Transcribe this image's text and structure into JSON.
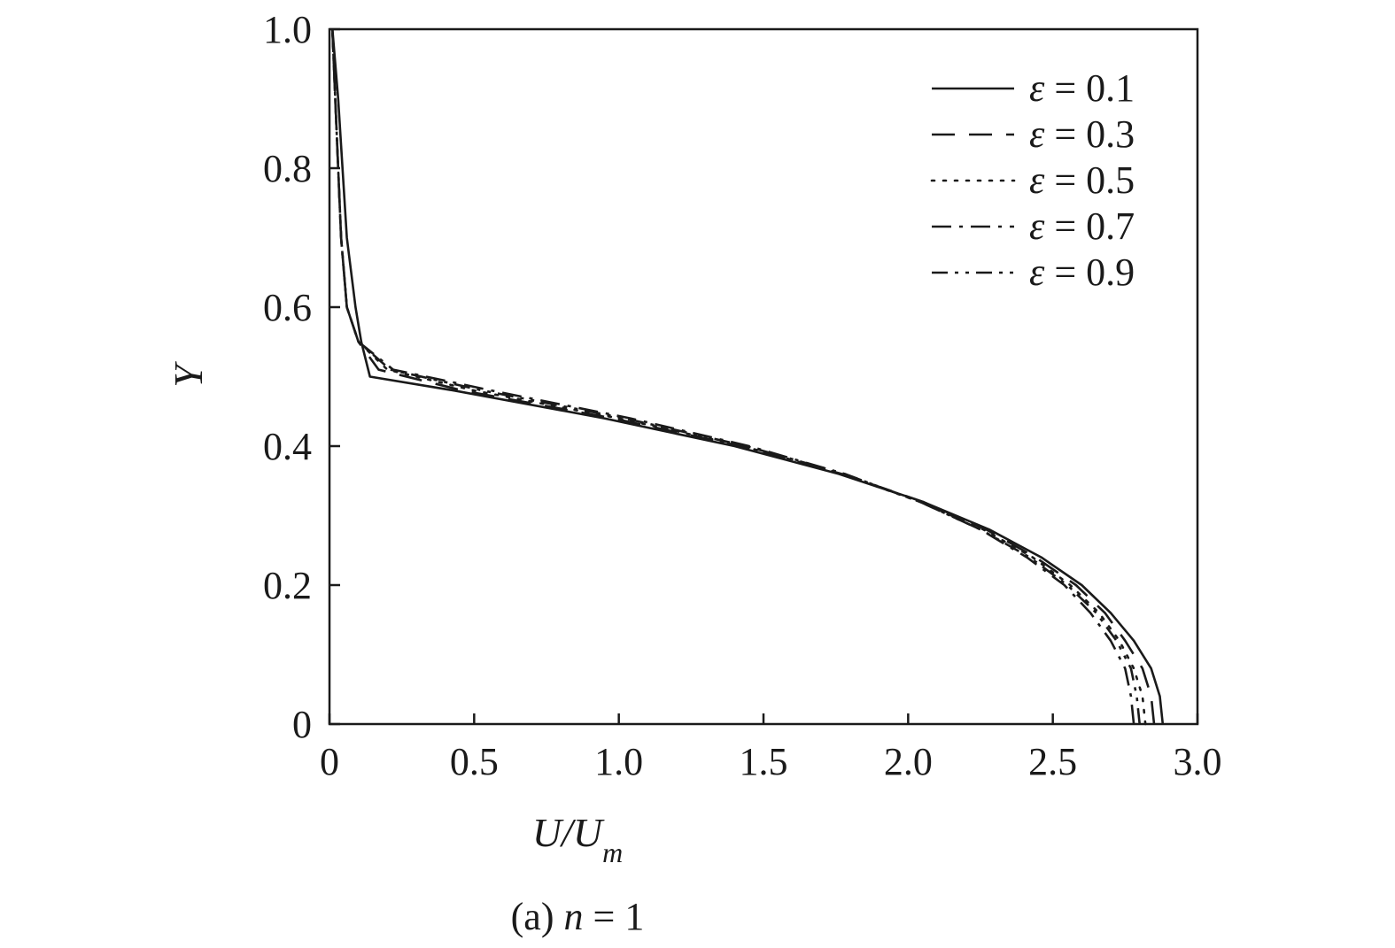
{
  "chart_data": {
    "type": "line",
    "xlabel": {
      "main": "U/U",
      "sub": "m"
    },
    "ylabel": "Y",
    "xlim": [
      0,
      3.0
    ],
    "ylim": [
      0,
      1.0
    ],
    "xticks": [
      "0",
      "0.5",
      "1.0",
      "1.5",
      "2.0",
      "2.5",
      "3.0"
    ],
    "xtick_values": [
      0,
      0.5,
      1.0,
      1.5,
      2.0,
      2.5,
      3.0
    ],
    "yticks": [
      "0",
      "0.2",
      "0.4",
      "0.6",
      "0.8",
      "1.0"
    ],
    "ytick_values": [
      0,
      0.2,
      0.4,
      0.6,
      0.8,
      1.0
    ],
    "grid": false,
    "legend_position": "top-right",
    "caption": {
      "prefix": "(a) ",
      "var": "n",
      "rest": " = 1"
    },
    "line_color": "#1a1a1a",
    "series": [
      {
        "name": "ε = 0.1",
        "style": "solid",
        "points": [
          [
            2.88,
            0
          ],
          [
            2.87,
            0.04
          ],
          [
            2.84,
            0.08
          ],
          [
            2.78,
            0.12
          ],
          [
            2.7,
            0.16
          ],
          [
            2.6,
            0.2
          ],
          [
            2.46,
            0.24
          ],
          [
            2.28,
            0.28
          ],
          [
            2.05,
            0.32
          ],
          [
            1.76,
            0.36
          ],
          [
            1.4,
            0.4
          ],
          [
            0.95,
            0.44
          ],
          [
            0.43,
            0.48
          ],
          [
            0.14,
            0.5
          ],
          [
            0.11,
            0.55
          ],
          [
            0.09,
            0.6
          ],
          [
            0.06,
            0.7
          ],
          [
            0.045,
            0.8
          ],
          [
            0.03,
            0.9
          ],
          [
            0.01,
            1.0
          ]
        ]
      },
      {
        "name": "ε = 0.3",
        "style": "dashed",
        "points": [
          [
            2.85,
            0
          ],
          [
            2.84,
            0.04
          ],
          [
            2.81,
            0.08
          ],
          [
            2.75,
            0.12
          ],
          [
            2.68,
            0.16
          ],
          [
            2.58,
            0.2
          ],
          [
            2.44,
            0.24
          ],
          [
            2.27,
            0.28
          ],
          [
            2.05,
            0.32
          ],
          [
            1.77,
            0.36
          ],
          [
            1.42,
            0.4
          ],
          [
            0.98,
            0.44
          ],
          [
            0.46,
            0.48
          ],
          [
            0.17,
            0.51
          ],
          [
            0.1,
            0.55
          ],
          [
            0.06,
            0.6
          ],
          [
            0.04,
            0.7
          ],
          [
            0.03,
            0.8
          ],
          [
            0.02,
            0.9
          ],
          [
            0.01,
            1.0
          ]
        ]
      },
      {
        "name": "ε = 0.5",
        "style": "dotted",
        "points": [
          [
            2.82,
            0
          ],
          [
            2.81,
            0.04
          ],
          [
            2.78,
            0.08
          ],
          [
            2.73,
            0.12
          ],
          [
            2.66,
            0.16
          ],
          [
            2.56,
            0.2
          ],
          [
            2.43,
            0.24
          ],
          [
            2.26,
            0.28
          ],
          [
            2.04,
            0.32
          ],
          [
            1.77,
            0.36
          ],
          [
            1.43,
            0.4
          ],
          [
            1.0,
            0.44
          ],
          [
            0.5,
            0.48
          ],
          [
            0.2,
            0.51
          ],
          [
            0.1,
            0.55
          ],
          [
            0.06,
            0.6
          ],
          [
            0.04,
            0.7
          ],
          [
            0.03,
            0.8
          ],
          [
            0.02,
            0.9
          ],
          [
            0.01,
            1.0
          ]
        ]
      },
      {
        "name": "ε = 0.7",
        "style": "dashdot",
        "points": [
          [
            2.78,
            0
          ],
          [
            2.77,
            0.04
          ],
          [
            2.75,
            0.08
          ],
          [
            2.7,
            0.12
          ],
          [
            2.63,
            0.16
          ],
          [
            2.54,
            0.2
          ],
          [
            2.41,
            0.24
          ],
          [
            2.25,
            0.28
          ],
          [
            2.04,
            0.32
          ],
          [
            1.78,
            0.36
          ],
          [
            1.45,
            0.4
          ],
          [
            1.04,
            0.44
          ],
          [
            0.56,
            0.48
          ],
          [
            0.22,
            0.51
          ],
          [
            0.1,
            0.55
          ],
          [
            0.06,
            0.6
          ],
          [
            0.04,
            0.7
          ],
          [
            0.03,
            0.8
          ],
          [
            0.02,
            0.9
          ],
          [
            0.01,
            1.0
          ]
        ]
      },
      {
        "name": "ε = 0.9",
        "style": "dashdotdot",
        "points": [
          [
            2.8,
            0
          ],
          [
            2.79,
            0.04
          ],
          [
            2.77,
            0.08
          ],
          [
            2.72,
            0.12
          ],
          [
            2.65,
            0.16
          ],
          [
            2.55,
            0.2
          ],
          [
            2.42,
            0.24
          ],
          [
            2.25,
            0.28
          ],
          [
            2.04,
            0.32
          ],
          [
            1.78,
            0.36
          ],
          [
            1.44,
            0.4
          ],
          [
            1.02,
            0.44
          ],
          [
            0.53,
            0.48
          ],
          [
            0.21,
            0.51
          ],
          [
            0.1,
            0.55
          ],
          [
            0.06,
            0.6
          ],
          [
            0.04,
            0.7
          ],
          [
            0.03,
            0.8
          ],
          [
            0.02,
            0.9
          ],
          [
            0.01,
            1.0
          ]
        ]
      }
    ]
  }
}
